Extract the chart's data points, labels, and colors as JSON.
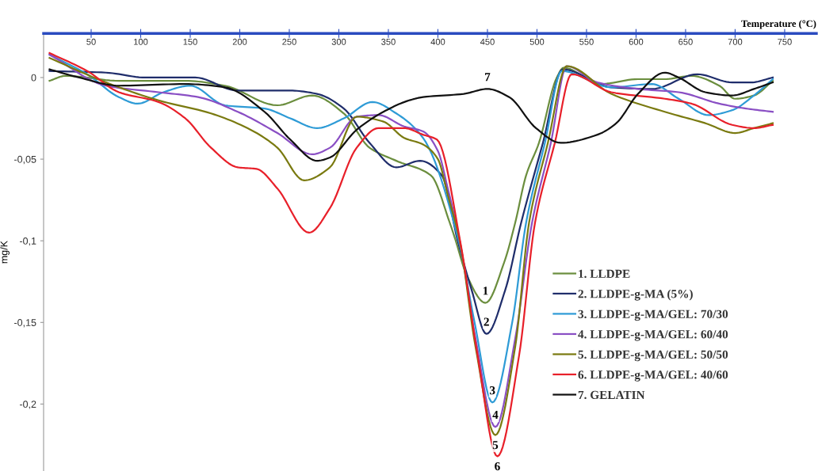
{
  "chart_data": {
    "type": "line",
    "xlabel": "Temperature (°C)",
    "ylabel": "mg/K",
    "xlim": [
      2,
      782
    ],
    "ylim": [
      -0.241,
      0.027
    ],
    "xticks": [
      50,
      100,
      150,
      200,
      250,
      300,
      350,
      400,
      450,
      500,
      550,
      600,
      650,
      700,
      750
    ],
    "yticks": [
      {
        "value": 0,
        "label": "0"
      },
      {
        "value": -0.05,
        "label": "-0,05"
      },
      {
        "value": -0.1,
        "label": "-0,1"
      },
      {
        "value": -0.15,
        "label": "-0,15"
      },
      {
        "value": -0.2,
        "label": "-0,2"
      }
    ],
    "legend": "right",
    "series": [
      {
        "name": "1. LLDPE",
        "color": "#6b8e3e",
        "x": [
          8,
          24,
          78,
          145,
          185,
          238,
          273,
          305,
          331,
          358,
          393,
          412,
          418,
          429,
          448,
          467,
          478,
          489,
          502,
          520,
          527,
          564,
          602,
          629,
          656,
          684,
          700,
          719,
          738
        ],
        "values": [
          -0.002,
          0.001,
          -0.002,
          -0.002,
          -0.005,
          -0.017,
          -0.011,
          -0.022,
          -0.043,
          -0.051,
          -0.06,
          -0.089,
          -0.1,
          -0.121,
          -0.138,
          -0.113,
          -0.089,
          -0.06,
          -0.04,
          0.0,
          0.006,
          -0.004,
          -0.001,
          -0.001,
          0.001,
          -0.005,
          -0.013,
          -0.011,
          -0.002
        ]
      },
      {
        "name": "2. LLDPE-g-MA (5%)",
        "color": "#1f2d6b",
        "x": [
          8,
          65,
          105,
          155,
          198,
          251,
          278,
          305,
          331,
          358,
          382,
          404,
          420,
          434,
          449,
          468,
          484,
          506,
          526,
          575,
          616,
          662,
          697,
          716,
          738
        ],
        "values": [
          0.004,
          0.003,
          0.0,
          0.0,
          -0.008,
          -0.008,
          -0.01,
          -0.019,
          -0.04,
          -0.055,
          -0.051,
          -0.06,
          -0.1,
          -0.13,
          -0.157,
          -0.13,
          -0.089,
          -0.04,
          0.005,
          -0.006,
          -0.007,
          0.002,
          -0.003,
          -0.003,
          0.0
        ]
      },
      {
        "name": "3. LLDPE-g-MA/GEL: 70/30",
        "color": "#2e9bd6",
        "x": [
          8,
          46,
          78,
          97,
          123,
          150,
          185,
          225,
          251,
          278,
          305,
          334,
          358,
          385,
          421,
          437,
          455,
          475,
          489,
          508,
          525,
          575,
          616,
          643,
          673,
          697,
          719,
          738
        ],
        "values": [
          0.014,
          0.002,
          -0.012,
          -0.016,
          -0.009,
          -0.005,
          -0.017,
          -0.019,
          -0.025,
          -0.031,
          -0.025,
          -0.015,
          -0.022,
          -0.037,
          -0.1,
          -0.15,
          -0.199,
          -0.15,
          -0.089,
          -0.04,
          0.004,
          -0.006,
          -0.004,
          -0.013,
          -0.023,
          -0.02,
          -0.011,
          -0.001
        ]
      },
      {
        "name": "4. LLDPE-g-MA/GEL: 60/40",
        "color": "#8a4fc4",
        "x": [
          8,
          65,
          118,
          158,
          198,
          238,
          273,
          291,
          318,
          340,
          366,
          385,
          400,
          410,
          422,
          438,
          458,
          478,
          495,
          514,
          530,
          561,
          602,
          643,
          684,
          711,
          738
        ],
        "values": [
          0.014,
          -0.005,
          -0.009,
          -0.012,
          -0.021,
          -0.034,
          -0.047,
          -0.043,
          -0.024,
          -0.023,
          -0.03,
          -0.033,
          -0.045,
          -0.068,
          -0.1,
          -0.16,
          -0.214,
          -0.16,
          -0.089,
          -0.04,
          0.007,
          -0.003,
          -0.007,
          -0.009,
          -0.016,
          -0.019,
          -0.021
        ]
      },
      {
        "name": "5. LLDPE-g-MA/GEL: 50/50",
        "color": "#7a7a10",
        "x": [
          8,
          65,
          118,
          171,
          211,
          238,
          265,
          291,
          318,
          345,
          366,
          385,
          400,
          410,
          422,
          438,
          458,
          478,
          492,
          511,
          530,
          575,
          629,
          670,
          700,
          719,
          738
        ],
        "values": [
          0.012,
          -0.003,
          -0.014,
          -0.022,
          -0.032,
          -0.043,
          -0.063,
          -0.055,
          -0.024,
          -0.027,
          -0.037,
          -0.041,
          -0.05,
          -0.072,
          -0.1,
          -0.165,
          -0.219,
          -0.165,
          -0.089,
          -0.04,
          0.007,
          -0.01,
          -0.021,
          -0.028,
          -0.034,
          -0.031,
          -0.028
        ]
      },
      {
        "name": "6. LLDPE-g-MA/GEL: 40/60",
        "color": "#e8202a",
        "x": [
          8,
          46,
          78,
          118,
          145,
          171,
          198,
          217,
          238,
          270,
          291,
          318,
          340,
          366,
          385,
          399,
          423,
          440,
          460,
          482,
          498,
          518,
          535,
          575,
          629,
          656,
          697,
          719,
          738
        ],
        "values": [
          0.015,
          0.004,
          -0.009,
          -0.015,
          -0.025,
          -0.043,
          -0.055,
          -0.056,
          -0.068,
          -0.095,
          -0.08,
          -0.043,
          -0.031,
          -0.031,
          -0.035,
          -0.038,
          -0.102,
          -0.17,
          -0.232,
          -0.17,
          -0.089,
          -0.04,
          0.002,
          -0.009,
          -0.013,
          -0.016,
          -0.029,
          -0.031,
          -0.029
        ]
      },
      {
        "name": "7. GELATIN",
        "color": "#111111",
        "x": [
          8,
          38,
          78,
          145,
          185,
          225,
          251,
          278,
          291,
          318,
          345,
          371,
          385,
          426,
          450,
          472,
          499,
          524,
          561,
          580,
          602,
          629,
          643,
          670,
          697,
          719,
          738
        ],
        "values": [
          0.005,
          0.0,
          -0.005,
          -0.004,
          -0.006,
          -0.021,
          -0.038,
          -0.051,
          -0.049,
          -0.032,
          -0.021,
          -0.014,
          -0.012,
          -0.01,
          -0.007,
          -0.012,
          -0.031,
          -0.04,
          -0.035,
          -0.028,
          -0.01,
          0.003,
          0.0,
          -0.009,
          -0.011,
          -0.007,
          -0.003
        ]
      }
    ],
    "annotations": [
      {
        "text": "1",
        "x": 448,
        "y": -0.138
      },
      {
        "text": "2",
        "x": 449,
        "y": -0.157
      },
      {
        "text": "3",
        "x": 455,
        "y": -0.199
      },
      {
        "text": "4",
        "x": 458,
        "y": -0.214
      },
      {
        "text": "5",
        "x": 458,
        "y": -0.219
      },
      {
        "text": "6",
        "x": 460,
        "y": -0.232
      },
      {
        "text": "7",
        "x": 450,
        "y": -0.007
      }
    ]
  }
}
